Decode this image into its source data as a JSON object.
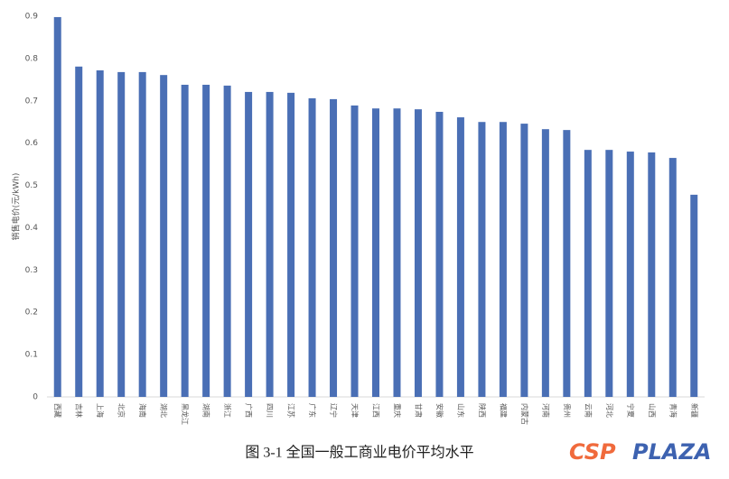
{
  "chart_data": {
    "type": "bar",
    "caption": "图 3-1 全国一般工商业电价平均水平",
    "y_label": "销售电价(元/kWh)",
    "categories": [
      "西藏",
      "吉林",
      "上海",
      "北京",
      "海南",
      "湖北",
      "黑龙江",
      "湖南",
      "浙江",
      "广西",
      "四川",
      "江苏",
      "广东",
      "辽宁",
      "天津",
      "江西",
      "重庆",
      "甘肃",
      "安徽",
      "山东",
      "陕西",
      "福建",
      "内蒙古",
      "河南",
      "贵州",
      "云南",
      "河北",
      "宁夏",
      "山西",
      "青海",
      "新疆"
    ],
    "values": [
      0.898,
      0.781,
      0.772,
      0.768,
      0.768,
      0.761,
      0.738,
      0.738,
      0.736,
      0.721,
      0.721,
      0.719,
      0.706,
      0.704,
      0.689,
      0.682,
      0.682,
      0.68,
      0.674,
      0.661,
      0.65,
      0.65,
      0.646,
      0.633,
      0.631,
      0.584,
      0.584,
      0.58,
      0.578,
      0.565,
      0.478
    ],
    "color": "#4a6fb5",
    "ylim": [
      0,
      0.9
    ],
    "yticks": [
      0,
      0.1,
      0.2,
      0.3,
      0.4,
      0.5,
      0.6,
      0.7,
      0.8,
      0.9
    ],
    "grid": false
  },
  "watermark": {
    "left": "CSP",
    "right": "PLAZA"
  }
}
